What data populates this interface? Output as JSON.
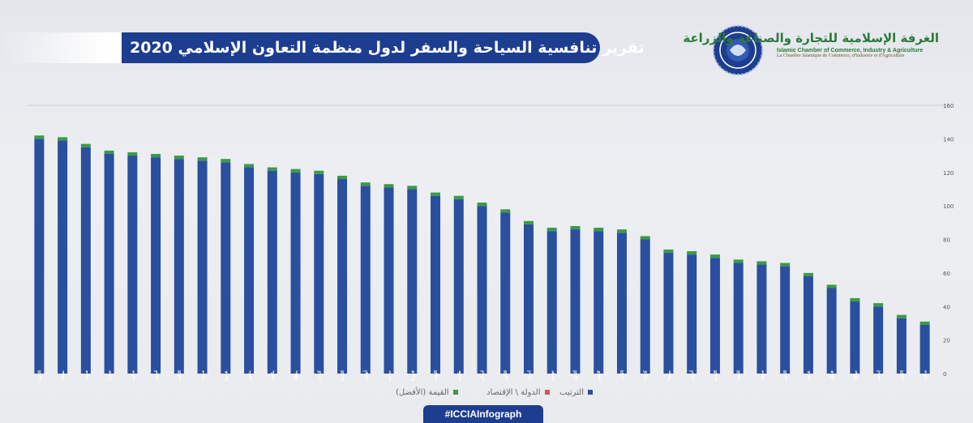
{
  "header": {
    "title": "تقرير تنافسية السياحة والسفر لدول منظمة التعاون الإسلامي 2020",
    "org_name_ar": "الغرفة الإسلامية للتجارة والصناعة والزراعة",
    "org_name_en": "Islamic Chamber of Commerce, Industry & Agriculture",
    "org_name_fr": "La Chambre Islamique de Commerce, d'Industrie et d'Agriculture"
  },
  "hashtag": "#ICCIAInfograph",
  "colors": {
    "rank": "#2a4f9e",
    "best": "#3a9a48",
    "accent": "#1d3d8f"
  },
  "chart_data": {
    "type": "bar",
    "stacked": true,
    "categories": [
      "اليمن",
      "تشاد",
      "موريتانيا",
      "سيراليون",
      "مالي",
      "ليبيريا",
      "الكاميرون",
      "موزمبيق",
      "غينيا",
      "بنين",
      "باكستان",
      "بنغلاديش",
      "كوت ديفوار",
      "الجزائر",
      "أوغندا",
      "نيجيريا",
      "قيرغيزستان",
      "السنغال",
      "طاجيكستان",
      "لبنان",
      "الكويت",
      "إيران",
      "تونس",
      "ألبانيا",
      "لاوس",
      "الأردن",
      "كازاخستان",
      "بروناي دار السلام",
      "أذربيجان",
      "المملكة العربية السعودية",
      "المغرب",
      "مصر",
      "البحرين",
      "عمان",
      "قطر",
      "تركيا",
      "إندونيسيا",
      "الإمارات العربية المتحدة",
      "ماليزيا"
    ],
    "series": [
      {
        "name": "الترتيب",
        "values": [
          140,
          139,
          135,
          131,
          130,
          129,
          128,
          127,
          126,
          123,
          121,
          120,
          119,
          116,
          112,
          111,
          110,
          106,
          104,
          100,
          96,
          89,
          85,
          86,
          85,
          84,
          80,
          72,
          71,
          69,
          66,
          65,
          64,
          58,
          51,
          43,
          40,
          33,
          29
        ]
      },
      {
        "name": "القيمة (الأفضل)",
        "values": [
          2,
          2,
          2,
          2,
          2,
          2,
          2,
          2,
          2,
          2,
          2,
          2,
          2,
          2,
          2,
          2,
          2,
          2,
          2,
          2,
          2,
          2,
          2,
          2,
          2,
          2,
          2,
          2,
          2,
          2,
          2,
          2,
          2,
          2,
          2,
          2,
          2,
          2,
          2
        ]
      }
    ],
    "legend": [
      "الترتيب",
      "الدولة \\ الإقتصاد",
      "القيمة (الأفضل)"
    ],
    "y_ticks": [
      "0",
      "20",
      "40",
      "60",
      "80",
      "100",
      "120",
      "140",
      "160"
    ],
    "ylim": [
      0,
      160
    ],
    "y_axis_side": "right",
    "legend_position": "bottom",
    "grid": false
  }
}
